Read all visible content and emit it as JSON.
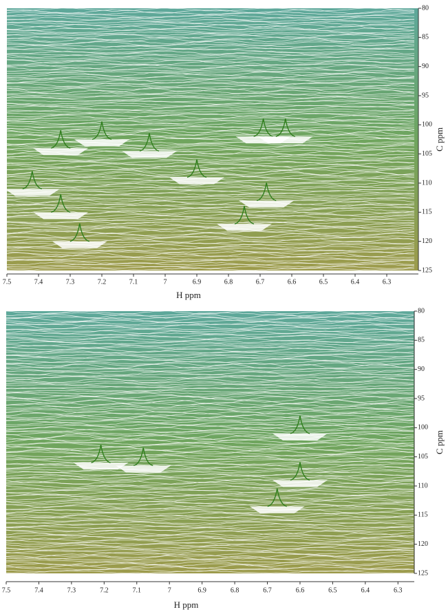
{
  "chart_data": [
    {
      "type": "stacked-plot",
      "x_label": "H ppm",
      "y_label": "C ppm",
      "xlim": [
        7.5,
        6.2
      ],
      "xticks": [
        7.5,
        7.4,
        7.3,
        7.2,
        7.1,
        7.0,
        6.9,
        6.8,
        6.7,
        6.6,
        6.5,
        6.4,
        6.3
      ],
      "ylim": [
        80,
        125
      ],
      "yticks": [
        80,
        85,
        90,
        95,
        100,
        105,
        110,
        115,
        120,
        125
      ],
      "peaks": {
        "x": [
          7.2,
          7.33,
          7.05,
          6.69,
          6.62,
          6.9,
          6.68,
          6.75,
          7.33,
          7.27,
          7.42
        ],
        "y": [
          102.5,
          104,
          104.5,
          102,
          102,
          109,
          113,
          117,
          115,
          120,
          111
        ]
      }
    },
    {
      "type": "stacked-plot",
      "x_label": "H ppm",
      "y_label": "C ppm",
      "xlim": [
        7.5,
        6.25
      ],
      "xticks": [
        7.5,
        7.4,
        7.3,
        7.2,
        7.1,
        7.0,
        6.9,
        6.8,
        6.7,
        6.6,
        6.5,
        6.4,
        6.3
      ],
      "ylim": [
        80,
        125
      ],
      "yticks": [
        80,
        85,
        90,
        95,
        100,
        105,
        110,
        115,
        120,
        125
      ],
      "peaks": {
        "x": [
          7.21,
          6.6,
          6.6,
          7.08,
          6.67
        ],
        "y": [
          106,
          101,
          109,
          106.5,
          113.5
        ]
      }
    }
  ]
}
